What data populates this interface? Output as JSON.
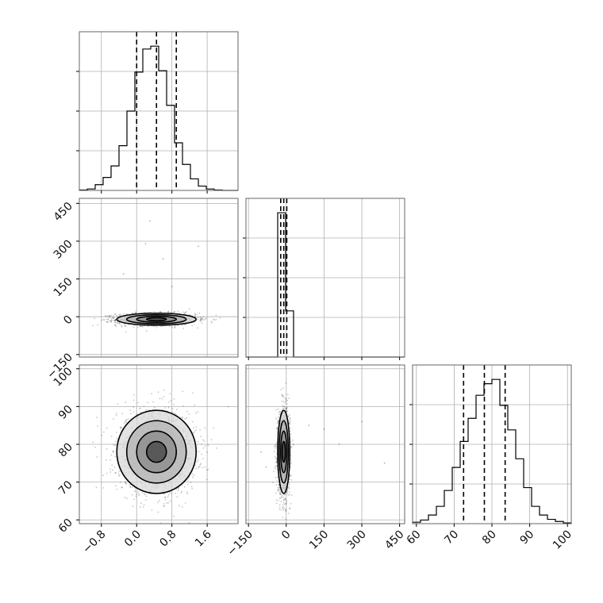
{
  "chart_data": {
    "type": "corner",
    "grid": true,
    "parameters": [
      {
        "key": "p0",
        "range": [
          -1.3,
          2.3
        ],
        "ticks": [
          -0.8,
          0.0,
          0.8,
          1.6
        ],
        "tick_labels": [
          "−0.8",
          "0.0",
          "0.8",
          "1.6"
        ],
        "quantiles": [
          0.0,
          0.45,
          0.9
        ],
        "hist_bins": [
          -1.3,
          -1.12,
          -0.94,
          -0.76,
          -0.58,
          -0.4,
          -0.22,
          -0.04,
          0.14,
          0.32,
          0.5,
          0.68,
          0.86,
          1.04,
          1.22,
          1.4,
          1.58,
          1.76,
          1.94,
          2.12,
          2.3
        ],
        "hist_counts": [
          0.3,
          1.0,
          4.0,
          9.0,
          17.0,
          31.0,
          55.0,
          82.0,
          98.0,
          100.0,
          83.0,
          59.0,
          33.0,
          18.0,
          8.0,
          3.0,
          1.0,
          0.3,
          0,
          0
        ]
      },
      {
        "key": "p1",
        "range": [
          -160,
          470
        ],
        "ticks": [
          -150,
          0,
          150,
          300,
          450
        ],
        "tick_labels": [
          "−150",
          "0",
          "150",
          "300",
          "450"
        ],
        "quantiles": [
          -22,
          -10,
          2
        ],
        "hist_bins": [
          -160,
          -128.5,
          -97,
          -65.5,
          -34,
          -2.5,
          29,
          60.5,
          92,
          123.5,
          155,
          186.5,
          218,
          249.5,
          281,
          312.5,
          344,
          375.5,
          407,
          438.5,
          470
        ],
        "hist_counts": [
          0,
          0,
          0,
          0,
          100,
          32,
          0,
          0,
          0,
          0,
          0,
          0,
          0,
          0,
          0,
          0,
          0,
          0,
          0,
          0
        ]
      },
      {
        "key": "p2",
        "range": [
          59,
          101
        ],
        "ticks": [
          60,
          70,
          80,
          90,
          100
        ],
        "tick_labels": [
          "60",
          "70",
          "80",
          "90",
          "100"
        ],
        "quantiles": [
          72.5,
          78,
          83.5
        ],
        "hist_bins": [
          59,
          61.1,
          63.2,
          65.3,
          67.4,
          69.5,
          71.6,
          73.7,
          75.8,
          77.9,
          80,
          82.1,
          84.2,
          86.3,
          88.4,
          90.5,
          92.6,
          94.7,
          96.8,
          98.9,
          101
        ],
        "hist_counts": [
          1.0,
          2.5,
          6.0,
          12.0,
          23.0,
          39.0,
          57.0,
          73.0,
          89.0,
          97.0,
          100.0,
          82.0,
          65.0,
          45.0,
          25.0,
          12.0,
          6.0,
          3.0,
          1.5,
          0.5
        ]
      }
    ],
    "pairs": [
      {
        "x": 0,
        "y": 1,
        "center": [
          0.45,
          -10
        ],
        "sigma": [
          0.45,
          12
        ],
        "rho": 0,
        "outliers": [
          [
            0.3,
            380
          ],
          [
            0.6,
            230
          ],
          [
            0.2,
            290
          ],
          [
            1.4,
            280
          ],
          [
            -0.3,
            170
          ],
          [
            0.8,
            120
          ]
        ]
      },
      {
        "x": 0,
        "y": 2,
        "center": [
          0.45,
          78
        ],
        "sigma": [
          0.45,
          5.5
        ],
        "rho": 0,
        "outliers": []
      },
      {
        "x": 1,
        "y": 2,
        "center": [
          -10,
          78
        ],
        "sigma": [
          12,
          5.5
        ],
        "rho": 0,
        "outliers": [
          [
            90,
            85
          ],
          [
            150,
            84
          ],
          [
            300,
            86
          ],
          [
            -100,
            78
          ],
          [
            -80,
            74
          ],
          [
            390,
            75
          ],
          [
            210,
            80
          ]
        ]
      }
    ]
  }
}
